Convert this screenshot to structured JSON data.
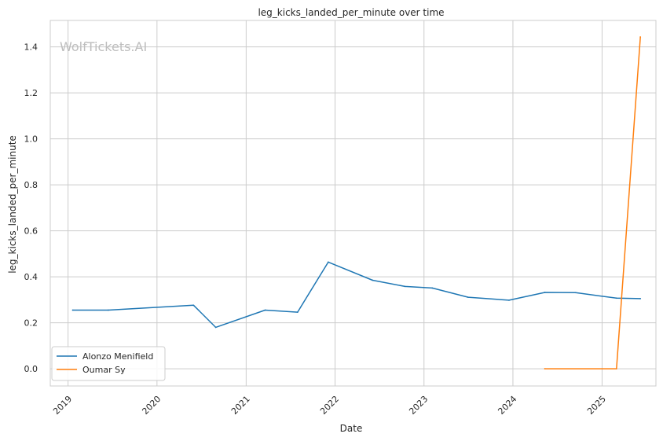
{
  "watermark": "WolfTickets.AI",
  "chart_data": {
    "type": "line",
    "title": "leg_kicks_landed_per_minute over time",
    "xlabel": "Date",
    "ylabel": "leg_kicks_landed_per_minute",
    "xlim": [
      "2018-10-20",
      "2025-08-10"
    ],
    "ylim": [
      -0.075,
      1.515
    ],
    "x_ticks": [
      {
        "date": "2019-01-01",
        "label": "2019"
      },
      {
        "date": "2020-01-01",
        "label": "2020"
      },
      {
        "date": "2021-01-01",
        "label": "2021"
      },
      {
        "date": "2022-01-01",
        "label": "2022"
      },
      {
        "date": "2023-01-01",
        "label": "2023"
      },
      {
        "date": "2024-01-01",
        "label": "2024"
      },
      {
        "date": "2025-01-01",
        "label": "2025"
      }
    ],
    "y_ticks": [
      {
        "value": 0.0,
        "label": "0.0"
      },
      {
        "value": 0.2,
        "label": "0.2"
      },
      {
        "value": 0.4,
        "label": "0.4"
      },
      {
        "value": 0.6,
        "label": "0.6"
      },
      {
        "value": 0.8,
        "label": "0.8"
      },
      {
        "value": 1.0,
        "label": "1.0"
      },
      {
        "value": 1.2,
        "label": "1.2"
      },
      {
        "value": 1.4,
        "label": "1.4"
      }
    ],
    "grid": true,
    "legend_position": "lower-left",
    "series": [
      {
        "name": "Alonzo Menifield",
        "color": "#1f77b4",
        "points": [
          {
            "x": "2019-01-20",
            "y": 0.255
          },
          {
            "x": "2019-06-15",
            "y": 0.255
          },
          {
            "x": "2020-05-30",
            "y": 0.276
          },
          {
            "x": "2020-08-29",
            "y": 0.18
          },
          {
            "x": "2021-03-20",
            "y": 0.255
          },
          {
            "x": "2021-07-31",
            "y": 0.246
          },
          {
            "x": "2021-12-04",
            "y": 0.464
          },
          {
            "x": "2022-06-04",
            "y": 0.385
          },
          {
            "x": "2022-10-15",
            "y": 0.358
          },
          {
            "x": "2023-02-04",
            "y": 0.351
          },
          {
            "x": "2023-07-01",
            "y": 0.311
          },
          {
            "x": "2023-12-16",
            "y": 0.298
          },
          {
            "x": "2024-05-11",
            "y": 0.332
          },
          {
            "x": "2024-09-14",
            "y": 0.331
          },
          {
            "x": "2025-03-01",
            "y": 0.307
          },
          {
            "x": "2025-06-07",
            "y": 0.305
          }
        ]
      },
      {
        "name": "Oumar Sy",
        "color": "#ff7f0e",
        "points": [
          {
            "x": "2024-05-11",
            "y": 0.0
          },
          {
            "x": "2025-03-01",
            "y": 0.0
          },
          {
            "x": "2025-06-07",
            "y": 1.443
          }
        ]
      }
    ]
  }
}
